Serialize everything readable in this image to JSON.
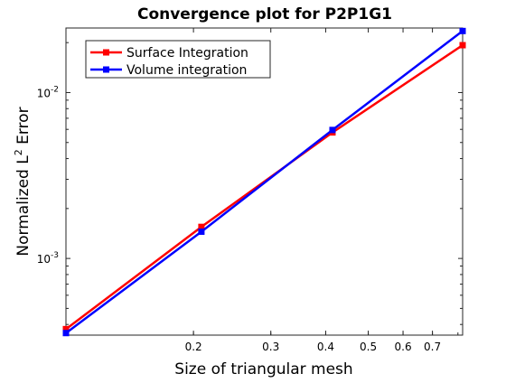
{
  "chart_data": {
    "type": "line",
    "title": "Convergence plot for P2P1G1",
    "xlabel": "Size of triangular mesh",
    "ylabel_main": "Normalized L",
    "ylabel_sup": "2",
    "ylabel_tail": " Error",
    "xscale": "log",
    "yscale": "log",
    "xlim": [
      0.1025,
      0.82
    ],
    "ylim": [
      0.000345,
      0.0245
    ],
    "xticks": [
      {
        "value": 0.2,
        "label": "0.2"
      },
      {
        "value": 0.3,
        "label": "0.3"
      },
      {
        "value": 0.4,
        "label": "0.4"
      },
      {
        "value": 0.5,
        "label": "0.5"
      },
      {
        "value": 0.6,
        "label": "0.6"
      },
      {
        "value": 0.7,
        "label": "0.7"
      }
    ],
    "yticks": [
      {
        "value": 0.001,
        "label_base": "10",
        "label_exp": "-3"
      },
      {
        "value": 0.01,
        "label_base": "10",
        "label_exp": "-2"
      }
    ],
    "grid": false,
    "legend_position": "top-left",
    "series": [
      {
        "name": "Surface Integration",
        "color": "#ff0000",
        "x": [
          0.1025,
          0.2085,
          0.4145,
          0.82
        ],
        "y": [
          0.000375,
          0.00155,
          0.00575,
          0.0193
        ]
      },
      {
        "name": "Volume integration",
        "color": "#0000ff",
        "x": [
          0.1025,
          0.2085,
          0.4145,
          0.82
        ],
        "y": [
          0.000355,
          0.00145,
          0.00595,
          0.0235
        ]
      }
    ]
  }
}
